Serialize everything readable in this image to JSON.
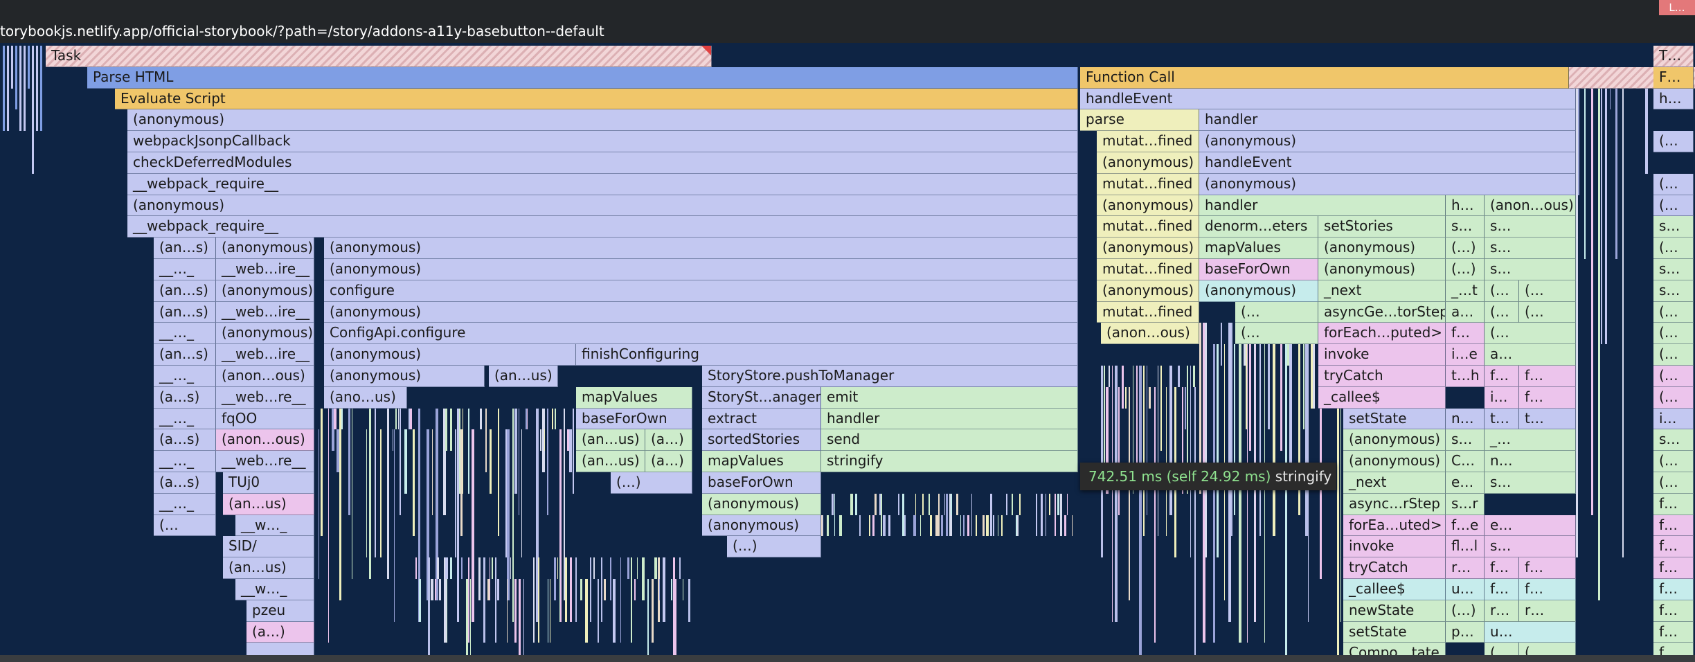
{
  "url": "torybookjs.netlify.app/official-storybook/?path=/story/addons-a11y-basebutton--default",
  "overview_marker": "L…",
  "tooltip": {
    "time": "742.51 ms (self 24.92 ms)",
    "name": "stringify"
  },
  "colors": {
    "background": "#0e2444",
    "task": "#f2d6d8",
    "html": "#7f9ee4",
    "script": "#f0c66a",
    "purple": "#c3c8f1",
    "yellow": "#efefbc",
    "green": "#cdeccb",
    "pink": "#ecc4ec",
    "teal": "#c6ecec",
    "tooltip_time": "#8fe28f"
  },
  "frames": [
    [
      "Task",
      1,
      66,
      962,
      "task"
    ],
    [
      "Task",
      2,
      1566,
      900,
      "task"
    ],
    [
      "T…",
      1,
      2388,
      58,
      "task"
    ],
    [
      "Parse HTML",
      2,
      126,
      1431,
      "html"
    ],
    [
      "Function Call",
      2,
      1560,
      706,
      "script"
    ],
    [
      "F…",
      2,
      2388,
      58,
      "script"
    ],
    [
      "Evaluate Script",
      3,
      166,
      1391,
      "script"
    ],
    [
      "handleEvent",
      3,
      1560,
      716,
      "purple"
    ],
    [
      "h…",
      3,
      2388,
      58,
      "purple"
    ],
    [
      "(anonymous)",
      4,
      184,
      1373,
      "purple"
    ],
    [
      "parse",
      4,
      1560,
      172,
      "yellow"
    ],
    [
      "handler",
      4,
      1732,
      544,
      "purple"
    ],
    [
      "webpackJsonpCallback",
      5,
      184,
      1373,
      "purple"
    ],
    [
      "mutat…fined",
      5,
      1584,
      148,
      "yellow"
    ],
    [
      "(anonymous)",
      5,
      1732,
      544,
      "purple"
    ],
    [
      "(…",
      5,
      2388,
      58,
      "purple"
    ],
    [
      "checkDeferredModules",
      6,
      184,
      1373,
      "purple"
    ],
    [
      "(anonymous)",
      6,
      1584,
      148,
      "yellow"
    ],
    [
      "handleEvent",
      6,
      1732,
      544,
      "purple"
    ],
    [
      "__webpack_require__",
      7,
      184,
      1373,
      "purple"
    ],
    [
      "mutat…fined",
      7,
      1584,
      148,
      "yellow"
    ],
    [
      "(anonymous)",
      7,
      1732,
      544,
      "purple"
    ],
    [
      "(…",
      7,
      2388,
      58,
      "purple"
    ],
    [
      "(anonymous)",
      8,
      184,
      1373,
      "purple"
    ],
    [
      "(anonymous)",
      8,
      1584,
      148,
      "yellow"
    ],
    [
      "handler",
      8,
      1732,
      356,
      "green"
    ],
    [
      "h…",
      8,
      2088,
      56,
      "green"
    ],
    [
      "(anon…ous)",
      8,
      2144,
      132,
      "green"
    ],
    [
      "(…",
      8,
      2388,
      58,
      "purple"
    ],
    [
      "__webpack_require__",
      9,
      184,
      1373,
      "purple"
    ],
    [
      "mutat…fined",
      9,
      1584,
      148,
      "yellow"
    ],
    [
      "denorm…eters",
      9,
      1732,
      172,
      "green"
    ],
    [
      "setStories",
      9,
      1904,
      184,
      "green"
    ],
    [
      "s…",
      9,
      2088,
      56,
      "green"
    ],
    [
      "s…",
      9,
      2144,
      132,
      "green"
    ],
    [
      "s…",
      9,
      2388,
      58,
      "green"
    ],
    [
      "(an…s)",
      10,
      222,
      90,
      "purple"
    ],
    [
      "(anonymous)",
      10,
      312,
      142,
      "purple"
    ],
    [
      "(anonymous)",
      10,
      468,
      1089,
      "purple"
    ],
    [
      "(anonymous)",
      10,
      1584,
      148,
      "yellow"
    ],
    [
      "mapValues",
      10,
      1732,
      172,
      "green"
    ],
    [
      "(anonymous)",
      10,
      1904,
      184,
      "green"
    ],
    [
      "(…)",
      10,
      2088,
      56,
      "green"
    ],
    [
      "s…",
      10,
      2144,
      132,
      "green"
    ],
    [
      "(…",
      10,
      2388,
      58,
      "green"
    ],
    [
      "__…_",
      11,
      222,
      90,
      "purple"
    ],
    [
      "__web…ire__",
      11,
      312,
      142,
      "purple"
    ],
    [
      "(anonymous)",
      11,
      468,
      1089,
      "purple"
    ],
    [
      "mutat…fined",
      11,
      1584,
      148,
      "yellow"
    ],
    [
      "baseForOwn",
      11,
      1732,
      172,
      "pink"
    ],
    [
      "(anonymous)",
      11,
      1904,
      184,
      "green"
    ],
    [
      "(…)",
      11,
      2088,
      56,
      "green"
    ],
    [
      "s…",
      11,
      2144,
      132,
      "green"
    ],
    [
      "s…",
      11,
      2388,
      58,
      "green"
    ],
    [
      "(an…s)",
      12,
      222,
      90,
      "purple"
    ],
    [
      "(anonymous)",
      12,
      312,
      142,
      "purple"
    ],
    [
      "configure",
      12,
      468,
      1089,
      "purple"
    ],
    [
      "(anonymous)",
      12,
      1584,
      148,
      "yellow"
    ],
    [
      "(anonymous)",
      12,
      1732,
      172,
      "teal"
    ],
    [
      "_next",
      12,
      1904,
      184,
      "green"
    ],
    [
      "_…t",
      12,
      2088,
      56,
      "green"
    ],
    [
      "(…",
      12,
      2144,
      50,
      "green"
    ],
    [
      "(…",
      12,
      2194,
      82,
      "green"
    ],
    [
      "s…",
      12,
      2388,
      58,
      "green"
    ],
    [
      "(an…s)",
      13,
      222,
      90,
      "purple"
    ],
    [
      "__web…ire__",
      13,
      312,
      142,
      "purple"
    ],
    [
      "(anonymous)",
      13,
      468,
      1089,
      "purple"
    ],
    [
      "mutat…fined",
      13,
      1584,
      148,
      "yellow"
    ],
    [
      "(…",
      13,
      1784,
      120,
      "green"
    ],
    [
      "asyncGe…torStep",
      13,
      1904,
      184,
      "green"
    ],
    [
      "a…",
      13,
      2088,
      56,
      "green"
    ],
    [
      "(…",
      13,
      2144,
      50,
      "green"
    ],
    [
      "(…",
      13,
      2194,
      82,
      "green"
    ],
    [
      "(…",
      13,
      2388,
      58,
      "green"
    ],
    [
      "__…_",
      14,
      222,
      90,
      "purple"
    ],
    [
      "(anonymous)",
      14,
      312,
      142,
      "purple"
    ],
    [
      "ConfigApi.configure",
      14,
      468,
      1089,
      "purple"
    ],
    [
      "(anon…ous)",
      14,
      1590,
      142,
      "yellow"
    ],
    [
      "(…",
      14,
      1784,
      120,
      "green"
    ],
    [
      "forEach…puted>",
      14,
      1904,
      184,
      "pink"
    ],
    [
      "f…",
      14,
      2088,
      56,
      "pink"
    ],
    [
      "(…",
      14,
      2144,
      132,
      "green"
    ],
    [
      "(…",
      14,
      2388,
      58,
      "green"
    ],
    [
      "(an…s)",
      15,
      222,
      90,
      "purple"
    ],
    [
      "__web…ire__",
      15,
      312,
      142,
      "purple"
    ],
    [
      "(anonymous)",
      15,
      468,
      364,
      "purple"
    ],
    [
      "finishConfiguring",
      15,
      832,
      725,
      "purple"
    ],
    [
      "invoke",
      15,
      1904,
      184,
      "pink"
    ],
    [
      "i…e",
      15,
      2088,
      56,
      "pink"
    ],
    [
      "a…",
      15,
      2144,
      132,
      "green"
    ],
    [
      "(…",
      15,
      2388,
      58,
      "green"
    ],
    [
      "__…_",
      16,
      222,
      90,
      "purple"
    ],
    [
      "(anon…ous)",
      16,
      312,
      142,
      "purple"
    ],
    [
      "(anonymous)",
      16,
      468,
      232,
      "purple"
    ],
    [
      "(an…us)",
      16,
      706,
      100,
      "purple"
    ],
    [
      "StoryStore.pushToManager",
      16,
      1014,
      543,
      "purple"
    ],
    [
      "tryCatch",
      16,
      1904,
      184,
      "pink"
    ],
    [
      "t…h",
      16,
      2088,
      56,
      "pink"
    ],
    [
      "f…",
      16,
      2144,
      50,
      "pink"
    ],
    [
      "f…",
      16,
      2194,
      82,
      "pink"
    ],
    [
      "(…",
      16,
      2388,
      58,
      "pink"
    ],
    [
      "(a…s)",
      17,
      222,
      90,
      "purple"
    ],
    [
      "__web…re__",
      17,
      312,
      142,
      "purple"
    ],
    [
      "(ano…us)",
      17,
      468,
      120,
      "purple"
    ],
    [
      "mapValues",
      17,
      832,
      168,
      "green"
    ],
    [
      "StorySt…anager",
      17,
      1014,
      172,
      "purple"
    ],
    [
      "emit",
      17,
      1186,
      371,
      "green"
    ],
    [
      "_callee$",
      17,
      1904,
      184,
      "pink"
    ],
    [
      "i…",
      17,
      2144,
      50,
      "pink"
    ],
    [
      "f…",
      17,
      2194,
      82,
      "pink"
    ],
    [
      "(…",
      17,
      2388,
      58,
      "pink"
    ],
    [
      "__…_",
      18,
      222,
      90,
      "purple"
    ],
    [
      "fqOO",
      18,
      312,
      142,
      "purple"
    ],
    [
      "baseForOwn",
      18,
      832,
      168,
      "purple"
    ],
    [
      "extract",
      18,
      1014,
      172,
      "purple"
    ],
    [
      "handler",
      18,
      1186,
      371,
      "green"
    ],
    [
      "setState",
      18,
      1940,
      148,
      "purple"
    ],
    [
      "n…",
      18,
      2088,
      56,
      "purple"
    ],
    [
      "t…",
      18,
      2144,
      50,
      "purple"
    ],
    [
      "t…",
      18,
      2194,
      82,
      "purple"
    ],
    [
      "i…",
      18,
      2388,
      58,
      "purple"
    ],
    [
      "(a…s)",
      19,
      222,
      90,
      "purple"
    ],
    [
      "(anon…ous)",
      19,
      312,
      142,
      "pink"
    ],
    [
      "(an…us)",
      19,
      832,
      100,
      "green"
    ],
    [
      "(a…)",
      19,
      932,
      68,
      "green"
    ],
    [
      "sortedStories",
      19,
      1014,
      172,
      "purple"
    ],
    [
      "send",
      19,
      1186,
      371,
      "green"
    ],
    [
      "(anonymous)",
      19,
      1940,
      148,
      "green"
    ],
    [
      "s…",
      19,
      2088,
      56,
      "green"
    ],
    [
      "_…",
      19,
      2144,
      132,
      "green"
    ],
    [
      "s…",
      19,
      2388,
      58,
      "green"
    ],
    [
      "__…_",
      20,
      222,
      90,
      "purple"
    ],
    [
      "__web…re__",
      20,
      312,
      142,
      "purple"
    ],
    [
      "(an…us)",
      20,
      832,
      100,
      "green"
    ],
    [
      "(a…)",
      20,
      932,
      68,
      "green"
    ],
    [
      "mapValues",
      20,
      1014,
      172,
      "green"
    ],
    [
      "stringify",
      20,
      1186,
      371,
      "green"
    ],
    [
      "(anonymous)",
      20,
      1940,
      148,
      "green"
    ],
    [
      "C…",
      20,
      2088,
      56,
      "green"
    ],
    [
      "n…",
      20,
      2144,
      132,
      "green"
    ],
    [
      "(…",
      20,
      2388,
      58,
      "green"
    ],
    [
      "(a…s)",
      21,
      222,
      90,
      "purple"
    ],
    [
      "TUj0",
      21,
      322,
      132,
      "purple"
    ],
    [
      "(…)",
      21,
      882,
      118,
      "purple"
    ],
    [
      "baseForOwn",
      21,
      1014,
      172,
      "purple"
    ],
    [
      "_next",
      21,
      1940,
      148,
      "green"
    ],
    [
      "e…",
      21,
      2088,
      56,
      "green"
    ],
    [
      "s…",
      21,
      2144,
      132,
      "green"
    ],
    [
      "(…",
      21,
      2388,
      58,
      "green"
    ],
    [
      "__…_",
      22,
      222,
      90,
      "purple"
    ],
    [
      "(an…us)",
      22,
      322,
      132,
      "pink"
    ],
    [
      "(anonymous)",
      22,
      1014,
      172,
      "green"
    ],
    [
      "async…rStep",
      22,
      1940,
      148,
      "green"
    ],
    [
      "s…r",
      22,
      2088,
      56,
      "green"
    ],
    [
      "f…",
      22,
      2388,
      58,
      "green"
    ],
    [
      "(…",
      23,
      222,
      90,
      "purple"
    ],
    [
      "__w…_",
      23,
      340,
      114,
      "purple"
    ],
    [
      "(anonymous)",
      23,
      1014,
      172,
      "purple"
    ],
    [
      "forEa…uted>",
      23,
      1940,
      148,
      "pink"
    ],
    [
      "f…e",
      23,
      2088,
      56,
      "pink"
    ],
    [
      "e…",
      23,
      2144,
      132,
      "pink"
    ],
    [
      "f…",
      23,
      2388,
      58,
      "pink"
    ],
    [
      "SID/",
      24,
      322,
      132,
      "purple"
    ],
    [
      "(…)",
      24,
      1050,
      136,
      "purple"
    ],
    [
      "invoke",
      24,
      1940,
      148,
      "pink"
    ],
    [
      "fl…l",
      24,
      2088,
      56,
      "pink"
    ],
    [
      "s…",
      24,
      2144,
      132,
      "pink"
    ],
    [
      "f…",
      24,
      2388,
      58,
      "pink"
    ],
    [
      "(an…us)",
      25,
      322,
      132,
      "purple"
    ],
    [
      "tryCatch",
      25,
      1940,
      148,
      "pink"
    ],
    [
      "r…",
      25,
      2088,
      56,
      "pink"
    ],
    [
      "f…",
      25,
      2144,
      50,
      "pink"
    ],
    [
      "f…",
      25,
      2194,
      82,
      "pink"
    ],
    [
      "f…",
      25,
      2388,
      58,
      "pink"
    ],
    [
      "__w…_",
      26,
      340,
      114,
      "purple"
    ],
    [
      "_callee$",
      26,
      1940,
      148,
      "teal"
    ],
    [
      "u…",
      26,
      2088,
      56,
      "teal"
    ],
    [
      "f…",
      26,
      2144,
      50,
      "teal"
    ],
    [
      "f…",
      26,
      2194,
      82,
      "teal"
    ],
    [
      "f…",
      26,
      2388,
      58,
      "teal"
    ],
    [
      "pzeu",
      27,
      356,
      98,
      "purple"
    ],
    [
      "newState",
      27,
      1940,
      148,
      "green"
    ],
    [
      "(…)",
      27,
      2088,
      56,
      "green"
    ],
    [
      "r…",
      27,
      2144,
      50,
      "green"
    ],
    [
      "r…",
      27,
      2194,
      82,
      "green"
    ],
    [
      "f…",
      27,
      2388,
      58,
      "green"
    ],
    [
      "(a…)",
      28,
      356,
      98,
      "pink"
    ],
    [
      "setState",
      28,
      1940,
      148,
      "green"
    ],
    [
      "p…",
      28,
      2088,
      56,
      "green"
    ],
    [
      "u…",
      28,
      2144,
      132,
      "teal"
    ],
    [
      "f…",
      28,
      2388,
      58,
      "green"
    ],
    [
      "__…_",
      29,
      356,
      98,
      "purple"
    ],
    [
      "Compo…tate",
      29,
      1940,
      148,
      "green"
    ],
    [
      "(…",
      29,
      2144,
      50,
      "green"
    ],
    [
      "(…",
      29,
      2194,
      82,
      "green"
    ],
    [
      "f…",
      29,
      2388,
      58,
      "green"
    ]
  ]
}
